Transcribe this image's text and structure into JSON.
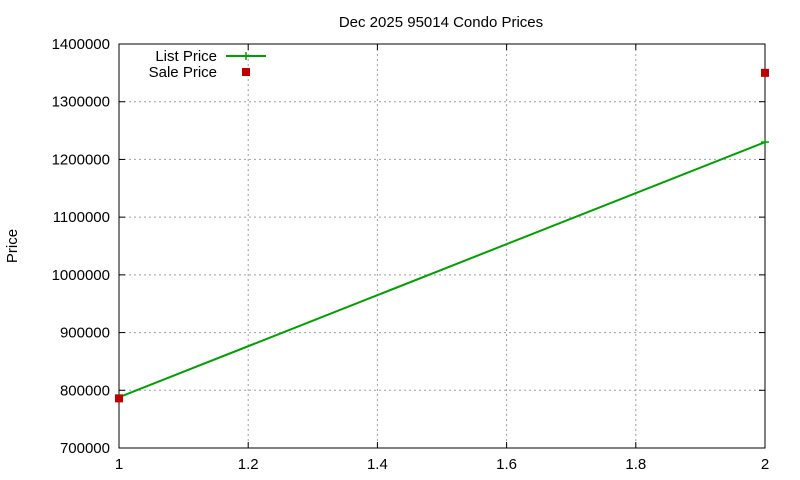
{
  "chart_data": {
    "type": "line",
    "title": "Dec 2025 95014 Condo Prices",
    "xlabel": "",
    "ylabel": "Price",
    "xlim": [
      1,
      2
    ],
    "ylim": [
      700000,
      1400000
    ],
    "x_ticks": [
      "1",
      "1.2",
      "1.4",
      "1.6",
      "1.8",
      "2"
    ],
    "y_ticks": [
      "700000",
      "800000",
      "900000",
      "1000000",
      "1100000",
      "1200000",
      "1300000",
      "1400000"
    ],
    "grid": true,
    "legend_position": "top-left",
    "series": [
      {
        "name": "List Price",
        "style": "line-with-plus-markers",
        "color": "#00a000",
        "points": [
          {
            "x": 1,
            "y": 788000
          },
          {
            "x": 2,
            "y": 1230000
          }
        ]
      },
      {
        "name": "Sale Price",
        "style": "square-markers",
        "color": "#c00000",
        "points": [
          {
            "x": 1,
            "y": 786000
          },
          {
            "x": 2,
            "y": 1350000
          }
        ]
      }
    ]
  }
}
